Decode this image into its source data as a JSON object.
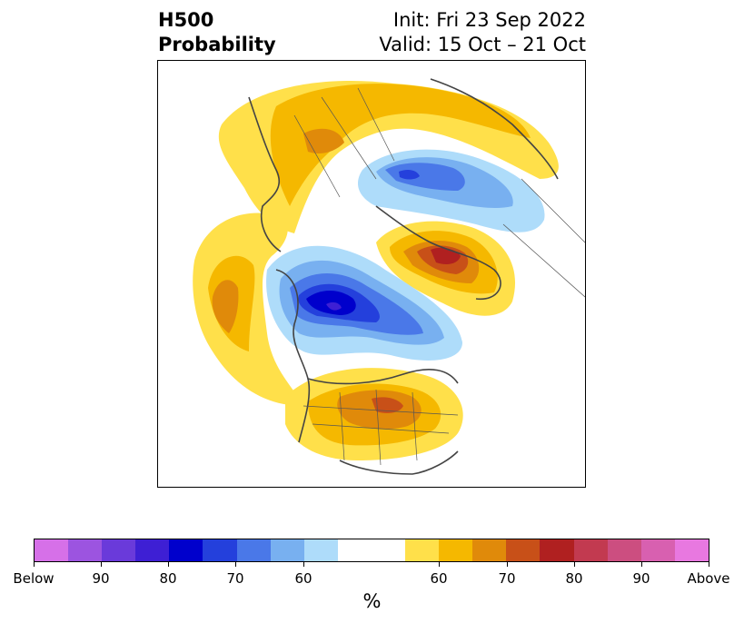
{
  "header": {
    "title_line1": "H500",
    "title_line2": "Probability",
    "init": "Init: Fri 23 Sep 2022",
    "valid": "Valid: 15 Oct – 21 Oct"
  },
  "colorbar": {
    "colors": [
      "#d670e8",
      "#9c54e0",
      "#6a3ada",
      "#3e1fd4",
      "#0000cc",
      "#2440dc",
      "#4a78e8",
      "#78b0f0",
      "#aedcfa",
      "#ffffff",
      "#ffe04a",
      "#f5b800",
      "#e08a0a",
      "#c85018",
      "#b02020",
      "#c23a50",
      "#cc4e80",
      "#d860b0",
      "#e878e0"
    ],
    "tick_labels": [
      "Below",
      "90",
      "80",
      "70",
      "60",
      "60",
      "70",
      "80",
      "90",
      "Above"
    ],
    "unit": "%"
  },
  "legend_colors": {
    "below_strong": "#0000cc",
    "below_light": "#aedcfa",
    "above_light": "#ffe04a",
    "above_strong": "#b02020"
  }
}
